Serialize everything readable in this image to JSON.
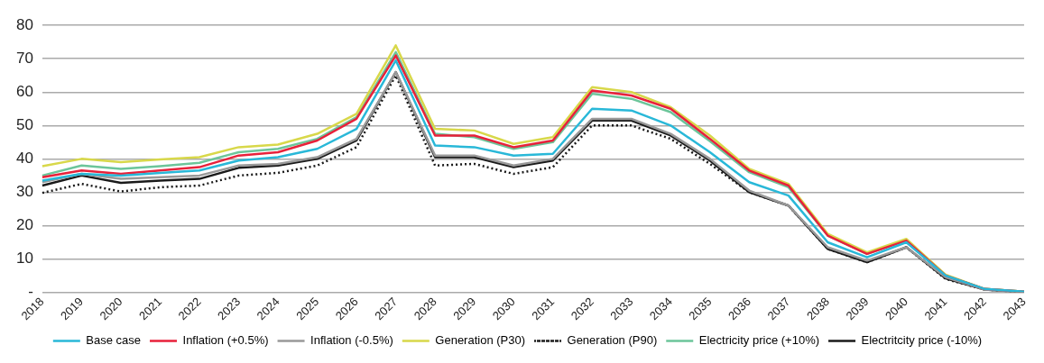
{
  "chart_data": {
    "type": "line",
    "categories": [
      "2018",
      "2019",
      "2020",
      "2021",
      "2022",
      "2023",
      "2024",
      "2025",
      "2026",
      "2027",
      "2028",
      "2029",
      "2030",
      "2031",
      "2032",
      "2033",
      "2034",
      "2035",
      "2036",
      "2037",
      "2038",
      "2039",
      "2040",
      "2041",
      "2042",
      "2043"
    ],
    "ylim": [
      0,
      80
    ],
    "yticks": [
      {
        "value": 0,
        "label": "-"
      },
      10,
      20,
      30,
      40,
      50,
      60,
      70,
      80
    ],
    "grid": "y",
    "legend": "bottom",
    "marker": "none",
    "series": [
      {
        "name": "Base case",
        "color": "#29b8d8",
        "values": [
          33.5,
          35.5,
          35,
          35.8,
          36.5,
          39.5,
          40.5,
          43,
          49,
          69.5,
          44,
          43.5,
          41,
          41.5,
          55,
          54.5,
          50,
          42,
          33,
          29,
          15,
          10.5,
          15,
          5,
          1,
          0.2
        ]
      },
      {
        "name": "Inflation (+0.5%)",
        "color": "#e8213a",
        "values": [
          34.5,
          36.5,
          35.5,
          36.5,
          37.5,
          41,
          42,
          45.5,
          52,
          71,
          47,
          47,
          43.5,
          45.5,
          60.5,
          59,
          55,
          46,
          36.5,
          32,
          17,
          11.5,
          15.5,
          5,
          1,
          0.2
        ]
      },
      {
        "name": "Inflation (-0.5%)",
        "color": "#999999",
        "values": [
          33,
          35.5,
          34,
          34.5,
          35,
          38,
          38.5,
          40.5,
          46,
          66,
          41,
          41,
          38,
          40,
          52,
          52,
          47.5,
          40,
          30.5,
          26,
          13.5,
          9.5,
          13.5,
          4.5,
          0.8,
          0.1
        ]
      },
      {
        "name": "Generation (P30)",
        "color": "#d8d84a",
        "values": [
          37.8,
          40,
          39,
          39.8,
          40.5,
          43.5,
          44.3,
          47.5,
          53.5,
          74,
          49,
          48.5,
          44.5,
          46.5,
          61.5,
          60,
          55.5,
          47,
          37,
          32.5,
          17.5,
          12,
          16,
          5.3,
          1,
          0.2
        ]
      },
      {
        "name": "Generation (P90)",
        "color": "#1a1a1a",
        "line_style": "dotted",
        "values": [
          29.8,
          32.5,
          30.2,
          31.5,
          32,
          35,
          35.8,
          38,
          43.5,
          65,
          38,
          38.5,
          35.5,
          37.5,
          50,
          50,
          46,
          38.5,
          30,
          26,
          13,
          9,
          13.5,
          4,
          0.8,
          0.1
        ]
      },
      {
        "name": "Electricity price (+10%)",
        "color": "#6cc59a",
        "values": [
          35,
          38,
          37,
          37.8,
          38.8,
          42,
          43,
          46,
          52.5,
          72,
          47.5,
          46.5,
          43,
          45,
          59.5,
          58,
          54,
          45.3,
          36,
          31.5,
          17,
          11.5,
          15.5,
          5,
          1,
          0.2
        ]
      },
      {
        "name": "Electritcity price (-10%)",
        "color": "#1a1a1a",
        "values": [
          32,
          35,
          32.8,
          33.5,
          34,
          37.3,
          38,
          40,
          45.5,
          66,
          40.5,
          40.5,
          37.5,
          39.5,
          51.5,
          51.5,
          47,
          39.5,
          30,
          26,
          13,
          9,
          13.5,
          4.2,
          0.8,
          0.1
        ]
      }
    ]
  }
}
